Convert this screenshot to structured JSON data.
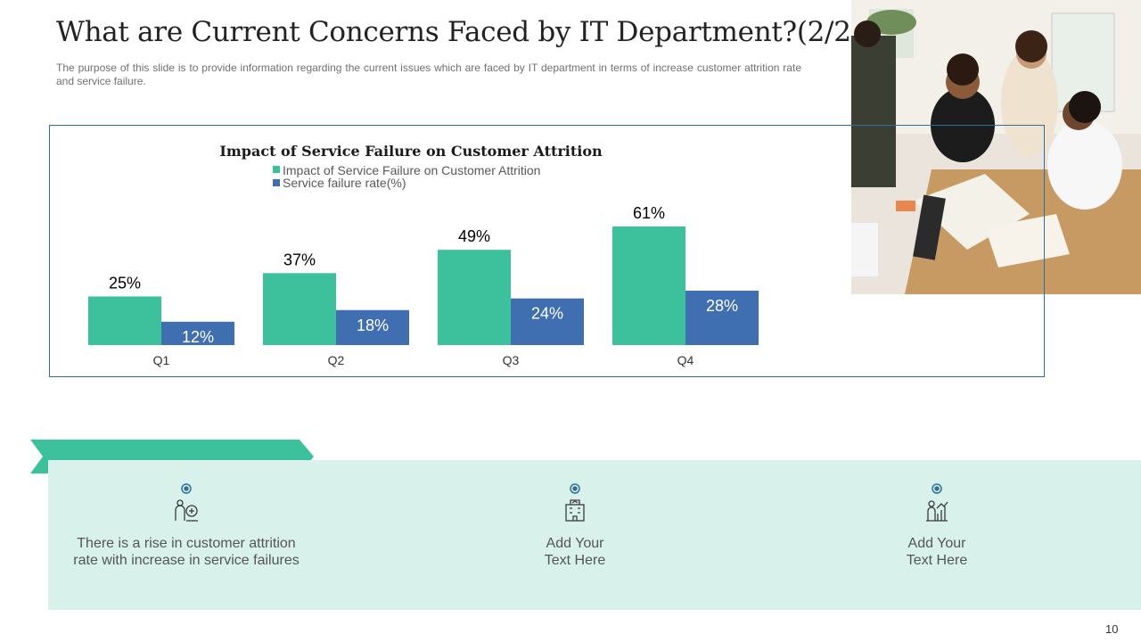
{
  "slide": {
    "title": "What are Current Concerns Faced by IT Department?(2/2)",
    "subtitle": "The purpose of this slide is to provide information regarding the current issues which are faced by IT department in terms of increase customer attrition rate and service failure.",
    "page_number": "10",
    "colors": {
      "accent_green": "#3cc19c",
      "accent_blue": "#3f6fb1",
      "panel_bg": "#d8f1ea",
      "frame": "#2f6f9a"
    }
  },
  "chart_data": {
    "type": "bar",
    "title": "Impact of Service Failure on Customer Attrition",
    "categories": [
      "Q1",
      "Q2",
      "Q3",
      "Q4"
    ],
    "series": [
      {
        "name": "Impact of Service Failure on Customer Attrition",
        "values": [
          25,
          37,
          49,
          61
        ],
        "labels": [
          "25%",
          "37%",
          "49%",
          "61%"
        ],
        "color": "#3cc19c"
      },
      {
        "name": "Service failure rate(%)",
        "values": [
          12,
          18,
          24,
          28
        ],
        "labels": [
          "12%",
          "18%",
          "24%",
          "28%"
        ],
        "color": "#3f6fb1"
      }
    ],
    "ylim": [
      0,
      61
    ],
    "xlabel": "",
    "ylabel": "",
    "legend": "top-left"
  },
  "features": [
    {
      "icon": "people-growth-icon",
      "text": "There is a rise in customer attrition\nrate with increase in service failures"
    },
    {
      "icon": "building-chart-icon",
      "text": "Add Your\nText Here"
    },
    {
      "icon": "person-chart-icon",
      "text": "Add Your\nText Here"
    }
  ]
}
